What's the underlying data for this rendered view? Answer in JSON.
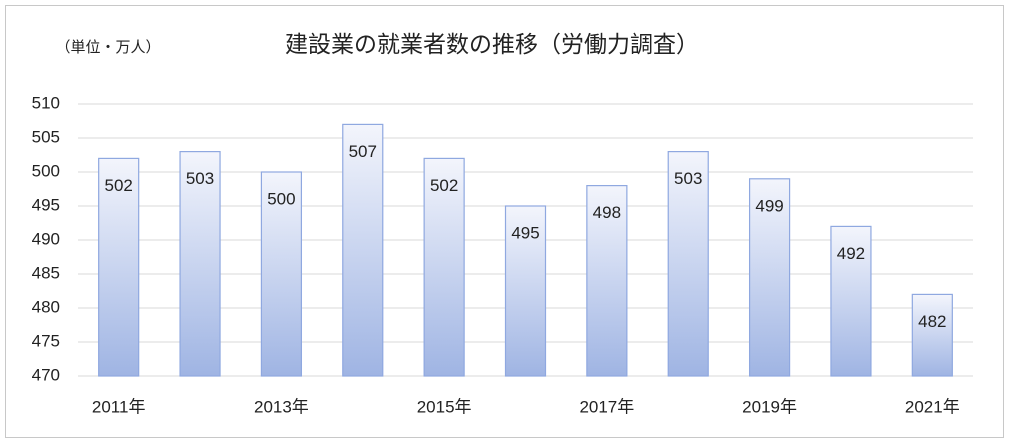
{
  "chart_data": {
    "type": "bar",
    "title": "建設業の就業者数の推移（労働力調査）",
    "annotation": "（単位・万人）",
    "categories": [
      "2011年",
      null,
      "2013年",
      null,
      "2015年",
      null,
      "2017年",
      null,
      "2019年",
      null,
      "2021年"
    ],
    "values": [
      502,
      503,
      500,
      507,
      502,
      495,
      498,
      503,
      499,
      492,
      482
    ],
    "color": "#9fb4e3",
    "ylim": [
      470,
      510
    ],
    "yticks": [
      470,
      475,
      480,
      485,
      490,
      495,
      500,
      505,
      510
    ],
    "grid": true
  }
}
